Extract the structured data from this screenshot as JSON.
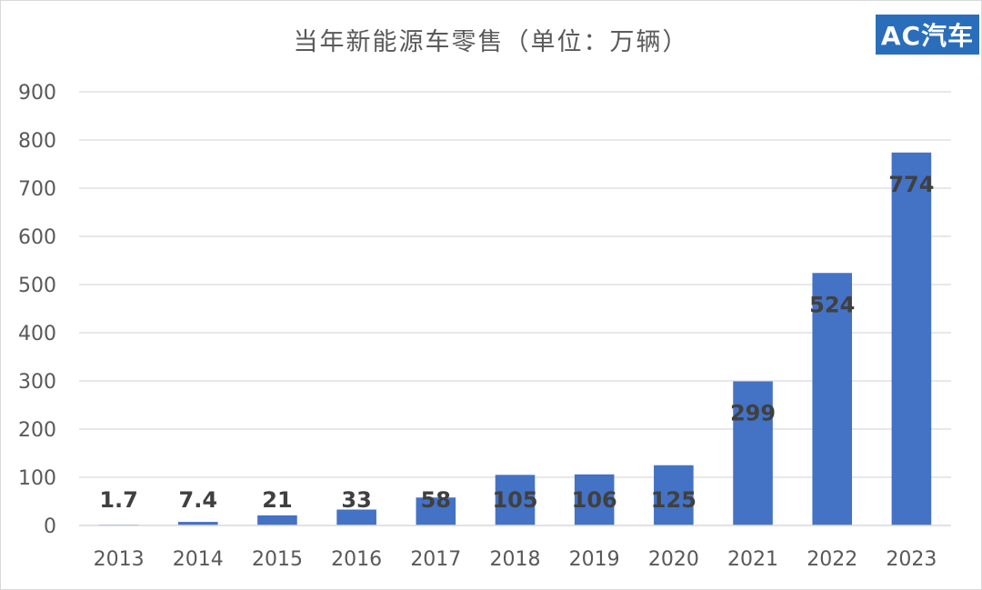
{
  "header": {
    "title": "当年新能源车零售（单位：万辆）",
    "logo_text": "AC汽车"
  },
  "colors": {
    "bar": "#4472c4",
    "gridline": "#d9d9d9",
    "axis_text": "#595959",
    "data_label": "#404040",
    "logo_bg": "#2a6ebb"
  },
  "chart_data": {
    "type": "bar",
    "title": "当年新能源车零售（单位：万辆）",
    "categories": [
      "2013",
      "2014",
      "2015",
      "2016",
      "2017",
      "2018",
      "2019",
      "2020",
      "2021",
      "2022",
      "2023"
    ],
    "values": [
      1.7,
      7.4,
      21,
      33,
      58,
      105,
      106,
      125,
      299,
      524,
      774
    ],
    "data_labels": [
      "1.7",
      "7.4",
      "21",
      "33",
      "58",
      "105",
      "106",
      "125",
      "299",
      "524",
      "774"
    ],
    "y_ticks": [
      "0",
      "100",
      "200",
      "300",
      "400",
      "500",
      "600",
      "700",
      "800",
      "900"
    ],
    "ylim": [
      0,
      900
    ],
    "grid": true,
    "legend": "none"
  }
}
